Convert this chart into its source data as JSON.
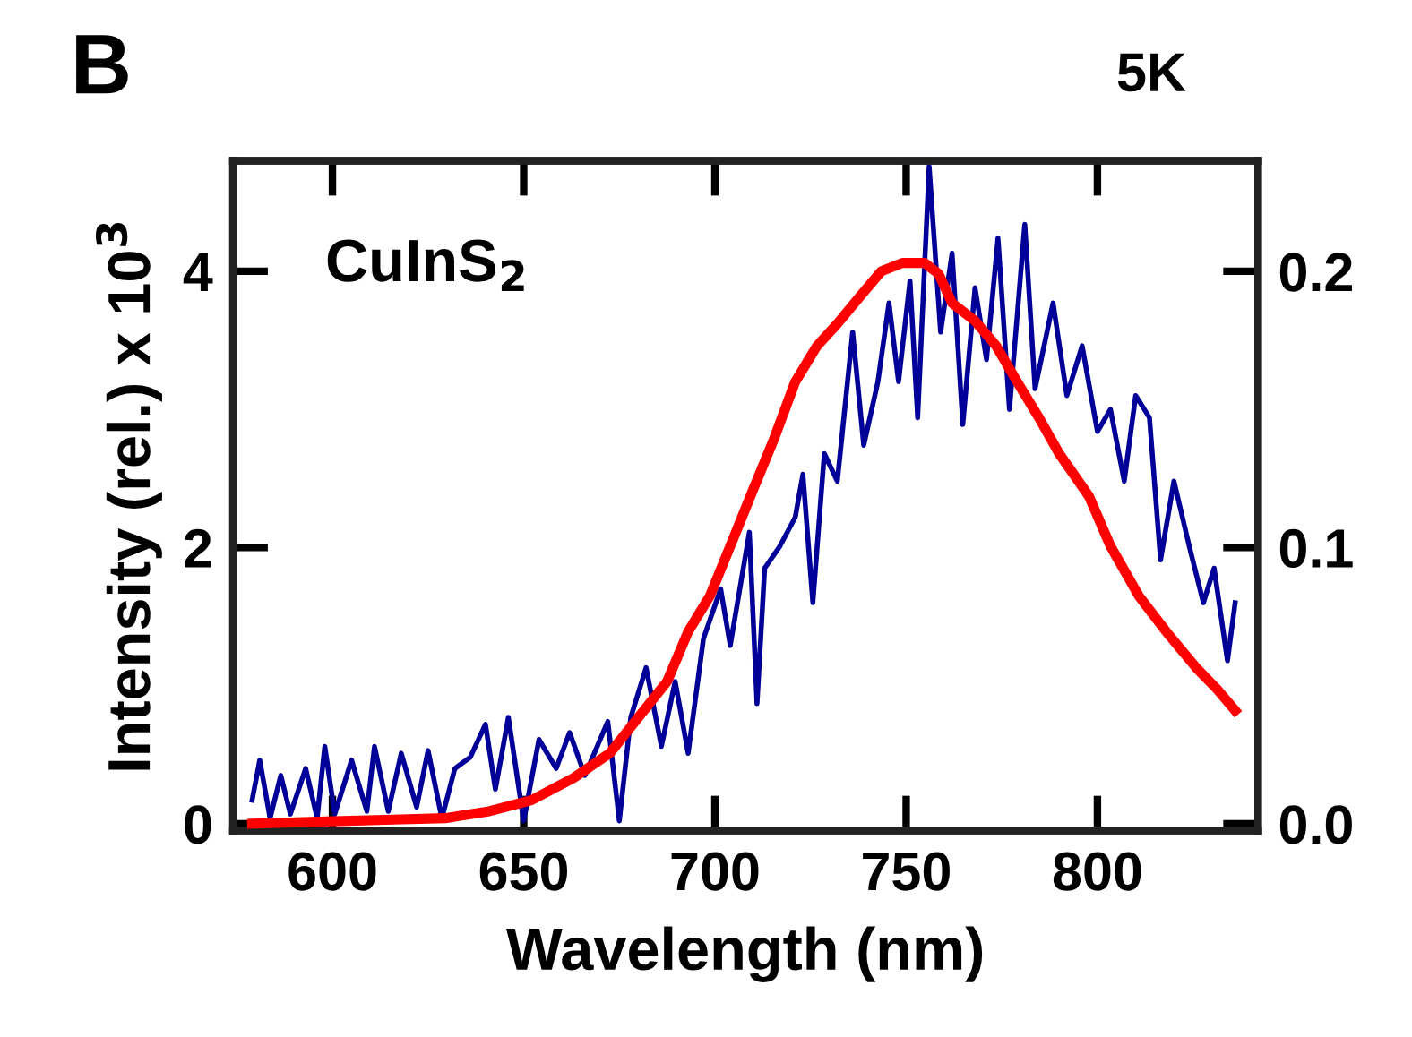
{
  "chart_data": {
    "type": "line",
    "title": "5K",
    "xlabel": "Wavelength (nm)",
    "ylabel": "Intensity (rel.) x 10$^{3}$",
    "annotations": [
      "B",
      "CuInS$_{2}$"
    ],
    "xlim": [
      574,
      842
    ],
    "xticks": [
      600,
      650,
      700,
      750,
      800
    ],
    "ylim": [
      -0.05,
      4.8
    ],
    "yticks": [
      0,
      2,
      4
    ],
    "y2lim": [
      -0.0025,
      0.24
    ],
    "y2ticks": [
      {
        "value": 0,
        "label": "0.0"
      },
      0.1,
      0.2
    ],
    "grid": false,
    "legend": false,
    "marker": "none",
    "line_style": "solid",
    "series": [
      {
        "color": "#000099",
        "x": [
          579,
          581,
          583.7,
          586.5,
          589,
          593,
          596,
          598,
          600.6,
          605,
          609,
          611,
          614.6,
          618,
          622,
          625,
          628.6,
          632,
          636,
          640,
          642.6,
          646,
          650,
          654,
          658.5,
          662,
          666,
          672,
          675,
          678,
          682,
          686,
          689.6,
          693,
          697,
          701.5,
          704,
          709,
          711,
          713,
          717,
          721,
          723,
          725.6,
          728.6,
          732,
          736,
          738.9,
          742.6,
          745.5,
          748,
          751,
          753,
          756,
          759,
          762,
          764.8,
          768,
          771,
          774,
          777,
          781,
          783.7,
          788.4,
          792,
          796,
          800,
          803.4,
          807,
          810,
          813.6,
          816.5,
          820,
          824,
          827.7,
          830.5,
          834,
          836
        ],
        "values": [
          0.17,
          0.46,
          0.04,
          0.35,
          0.07,
          0.4,
          0.04,
          0.56,
          0.07,
          0.46,
          0.09,
          0.56,
          0.09,
          0.51,
          0.12,
          0.53,
          0.04,
          0.4,
          0.48,
          0.72,
          0.25,
          0.77,
          0.02,
          0.61,
          0.4,
          0.66,
          0.35,
          0.74,
          0.02,
          0.77,
          1.13,
          0.56,
          1.03,
          0.51,
          1.34,
          1.7,
          1.29,
          2.11,
          0.87,
          1.85,
          2.01,
          2.22,
          2.53,
          1.6,
          2.68,
          2.48,
          3.56,
          2.74,
          3.2,
          3.77,
          3.2,
          3.93,
          2.94,
          4.76,
          3.56,
          4.13,
          2.89,
          3.88,
          3.36,
          4.24,
          3.0,
          4.34,
          3.15,
          3.77,
          3.1,
          3.46,
          2.84,
          3.0,
          2.48,
          3.1,
          2.94,
          1.91,
          2.48,
          2.01,
          1.6,
          1.85,
          1.18,
          1.6
        ]
      },
      {
        "color": "#ff0000",
        "axis": "y2",
        "x": [
          579,
          598,
          616,
          629.5,
          641,
          652,
          663,
          672.5,
          680,
          687.5,
          693,
          698.7,
          704,
          710,
          715.5,
          721,
          726.7,
          732,
          738,
          743.5,
          749,
          754.8,
          758.5,
          762,
          768,
          773.5,
          779,
          784.7,
          790,
          797.8,
          803.4,
          810.8,
          818,
          825.8,
          831.4,
          836
        ],
        "values": [
          0.0,
          0.0008,
          0.0015,
          0.002,
          0.0045,
          0.0085,
          0.0165,
          0.0255,
          0.0385,
          0.0515,
          0.0695,
          0.0825,
          0.1005,
          0.121,
          0.1395,
          0.16,
          0.173,
          0.181,
          0.191,
          0.2,
          0.203,
          0.203,
          0.199,
          0.1885,
          0.182,
          0.173,
          0.16,
          0.147,
          0.134,
          0.1185,
          0.1005,
          0.0825,
          0.0695,
          0.0565,
          0.0485,
          0.041
        ]
      }
    ]
  }
}
